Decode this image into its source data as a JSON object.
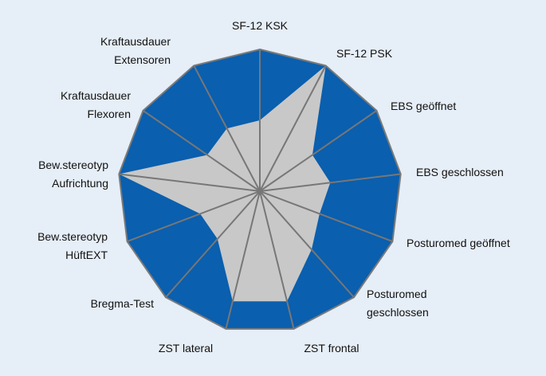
{
  "colors": {
    "background": "#E6EEF7",
    "outer_fill": "#0A5FAE",
    "inner_fill": "#C8C8C8",
    "spoke": "#777777",
    "outline": "#7A7A7A",
    "label_text": "#111111"
  },
  "chart_data": {
    "type": "radar",
    "title": "",
    "axes": [
      {
        "label_lines": [
          "SF-12 KSK"
        ]
      },
      {
        "label_lines": [
          "SF-12 PSK"
        ]
      },
      {
        "label_lines": [
          "EBS geöffnet"
        ]
      },
      {
        "label_lines": [
          "EBS geschlossen"
        ]
      },
      {
        "label_lines": [
          "Posturomed geöffnet"
        ]
      },
      {
        "label_lines": [
          "Posturomed",
          "geschlossen"
        ]
      },
      {
        "label_lines": [
          "ZST frontal"
        ]
      },
      {
        "label_lines": [
          "ZST lateral"
        ]
      },
      {
        "label_lines": [
          "Bregma-Test"
        ]
      },
      {
        "label_lines": [
          "Bew.stereotyp",
          "HüftEXT"
        ]
      },
      {
        "label_lines": [
          "Bew.stereotyp",
          "Aufrichtung"
        ]
      },
      {
        "label_lines": [
          "Kraftausdauer",
          "Flexoren"
        ]
      },
      {
        "label_lines": [
          "Kraftausdauer",
          "Extensoren"
        ]
      }
    ],
    "range": [
      0,
      1
    ],
    "series": [
      {
        "values": [
          0.5,
          1.0,
          0.45,
          0.5,
          0.45,
          0.55,
          0.8,
          0.8,
          0.45,
          0.45,
          1.0,
          0.45,
          0.5
        ]
      }
    ],
    "reference_outline": 1.0,
    "grid": false,
    "legend": "none"
  }
}
